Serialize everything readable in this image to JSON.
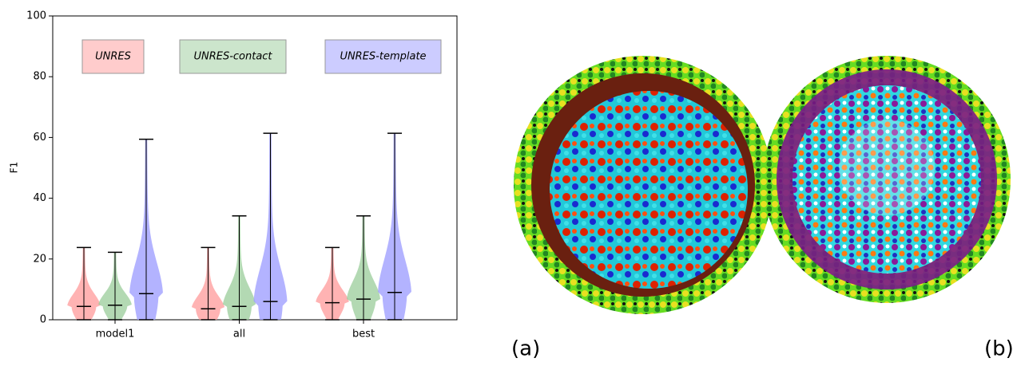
{
  "chart_data": {
    "type": "violin",
    "ylabel": "F1",
    "categories": [
      "model1",
      "all",
      "best"
    ],
    "series": [
      {
        "name": "UNRES",
        "color": "#ff9999",
        "min": [
          0,
          0,
          0
        ],
        "max": [
          23.8,
          23.8,
          23.8
        ],
        "median": [
          4.4,
          3.6,
          5.6
        ]
      },
      {
        "name": "UNRES-contact",
        "color": "#99cc99",
        "min": [
          0,
          0,
          0
        ],
        "max": [
          22.2,
          34.2,
          34.2
        ],
        "median": [
          4.8,
          4.4,
          6.8
        ]
      },
      {
        "name": "UNRES-template",
        "color": "#9999ff",
        "min": [
          0,
          0,
          0
        ],
        "max": [
          59.4,
          61.4,
          61.4
        ],
        "median": [
          8.6,
          6.0,
          9.0
        ]
      }
    ],
    "ylim": [
      0,
      100
    ],
    "yticks": [
      0,
      20,
      40,
      60,
      80,
      100
    ]
  },
  "panel_labels": [
    "(a)",
    "(b)"
  ]
}
